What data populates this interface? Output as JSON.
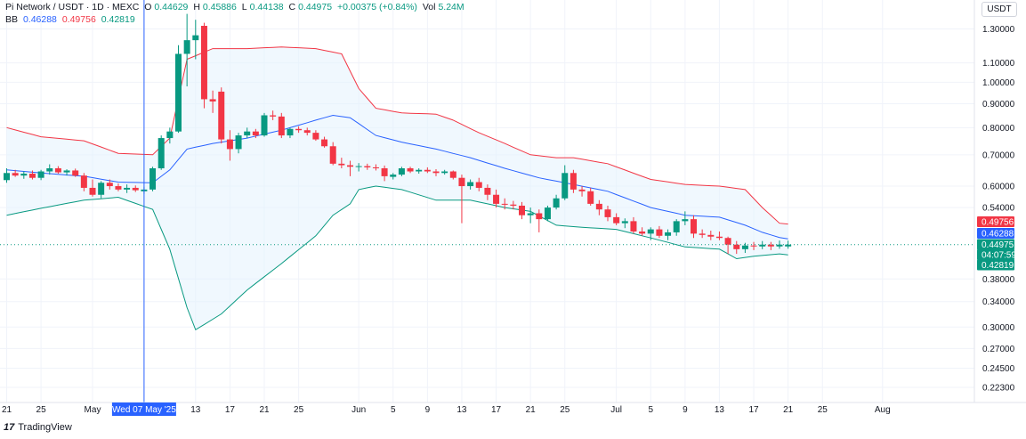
{
  "header": {
    "title": "Pi Network / USDT · 1D · MEXC",
    "open_label": "O",
    "open": "0.44629",
    "high_label": "H",
    "high": "0.45886",
    "low_label": "L",
    "low": "0.44138",
    "close_label": "C",
    "close": "0.44975",
    "change": "+0.00375 (+0.84%)",
    "volume_label": "Vol",
    "volume": "5.24M"
  },
  "bb_legend": {
    "name": "BB",
    "basis": "0.46288",
    "upper": "0.49756",
    "lower": "0.42819"
  },
  "currency": "USDT",
  "branding": {
    "logo": "17",
    "name": "TradingView"
  },
  "colors": {
    "up": "#089981",
    "down": "#f23645",
    "basis": "#2962ff",
    "upper": "#f23645",
    "lower": "#089981",
    "fill": "#e3f2fd",
    "crosshair": "#2962ff"
  },
  "chart_data": {
    "type": "candlestick",
    "title": "Pi Network / USDT · 1D · MEXC",
    "y_scale": "log",
    "ylim": [
      0.2,
      1.5
    ],
    "price_ticks": [
      "1.30000",
      "1.10000",
      "1.00000",
      "0.90000",
      "0.80000",
      "0.70000",
      "0.60000",
      "0.54000",
      "0.38000",
      "0.34000",
      "0.30000",
      "0.27000",
      "0.24500",
      "0.22300"
    ],
    "x_ticks": [
      {
        "day": 0,
        "label": "21"
      },
      {
        "day": 4,
        "label": "25"
      },
      {
        "day": 10,
        "label": "May"
      },
      {
        "day": 22,
        "label": "13"
      },
      {
        "day": 26,
        "label": "17"
      },
      {
        "day": 30,
        "label": "21"
      },
      {
        "day": 34,
        "label": "25"
      },
      {
        "day": 41,
        "label": "Jun"
      },
      {
        "day": 45,
        "label": "5"
      },
      {
        "day": 49,
        "label": "9"
      },
      {
        "day": 53,
        "label": "13"
      },
      {
        "day": 57,
        "label": "17"
      },
      {
        "day": 61,
        "label": "21"
      },
      {
        "day": 65,
        "label": "25"
      },
      {
        "day": 71,
        "label": "Jul"
      },
      {
        "day": 75,
        "label": "5"
      },
      {
        "day": 79,
        "label": "9"
      },
      {
        "day": 83,
        "label": "13"
      },
      {
        "day": 87,
        "label": "17"
      },
      {
        "day": 91,
        "label": "21"
      },
      {
        "day": 95,
        "label": "25"
      },
      {
        "day": 102,
        "label": "Aug"
      }
    ],
    "crosshair": {
      "day": 16,
      "label": "Wed 07 May '25"
    },
    "price_badges": [
      {
        "label": "0.49756",
        "color": "#f23645"
      },
      {
        "label": "0.46288",
        "color": "#2962ff"
      },
      {
        "label": "0.44975",
        "color": "#089981"
      },
      {
        "label": "04:07:59",
        "color": "#089981"
      },
      {
        "label": "0.42819",
        "color": "#089981"
      }
    ],
    "candles": [
      {
        "o": 0.618,
        "h": 0.655,
        "l": 0.61,
        "c": 0.64
      },
      {
        "o": 0.64,
        "h": 0.65,
        "l": 0.628,
        "c": 0.632
      },
      {
        "o": 0.632,
        "h": 0.645,
        "l": 0.622,
        "c": 0.638
      },
      {
        "o": 0.638,
        "h": 0.648,
        "l": 0.62,
        "c": 0.625
      },
      {
        "o": 0.625,
        "h": 0.65,
        "l": 0.618,
        "c": 0.645
      },
      {
        "o": 0.645,
        "h": 0.668,
        "l": 0.635,
        "c": 0.655
      },
      {
        "o": 0.655,
        "h": 0.662,
        "l": 0.638,
        "c": 0.642
      },
      {
        "o": 0.642,
        "h": 0.652,
        "l": 0.632,
        "c": 0.648
      },
      {
        "o": 0.648,
        "h": 0.654,
        "l": 0.628,
        "c": 0.632
      },
      {
        "o": 0.632,
        "h": 0.64,
        "l": 0.585,
        "c": 0.595
      },
      {
        "o": 0.595,
        "h": 0.62,
        "l": 0.57,
        "c": 0.575
      },
      {
        "o": 0.575,
        "h": 0.615,
        "l": 0.565,
        "c": 0.61
      },
      {
        "o": 0.61,
        "h": 0.62,
        "l": 0.59,
        "c": 0.6
      },
      {
        "o": 0.6,
        "h": 0.608,
        "l": 0.585,
        "c": 0.59
      },
      {
        "o": 0.59,
        "h": 0.605,
        "l": 0.58,
        "c": 0.595
      },
      {
        "o": 0.595,
        "h": 0.602,
        "l": 0.583,
        "c": 0.588
      },
      {
        "o": 0.585,
        "h": 0.598,
        "l": 0.578,
        "c": 0.59
      },
      {
        "o": 0.59,
        "h": 0.66,
        "l": 0.585,
        "c": 0.655
      },
      {
        "o": 0.655,
        "h": 0.77,
        "l": 0.65,
        "c": 0.76
      },
      {
        "o": 0.76,
        "h": 0.8,
        "l": 0.74,
        "c": 0.785
      },
      {
        "o": 0.785,
        "h": 1.2,
        "l": 0.78,
        "c": 1.15
      },
      {
        "o": 1.15,
        "h": 1.4,
        "l": 0.98,
        "c": 1.23
      },
      {
        "o": 1.23,
        "h": 1.36,
        "l": 1.12,
        "c": 1.26
      },
      {
        "o": 1.32,
        "h": 1.34,
        "l": 0.88,
        "c": 0.92
      },
      {
        "o": 0.92,
        "h": 0.96,
        "l": 0.86,
        "c": 0.91
      },
      {
        "o": 0.955,
        "h": 0.975,
        "l": 0.74,
        "c": 0.755
      },
      {
        "o": 0.755,
        "h": 0.79,
        "l": 0.68,
        "c": 0.72
      },
      {
        "o": 0.72,
        "h": 0.78,
        "l": 0.705,
        "c": 0.77
      },
      {
        "o": 0.77,
        "h": 0.8,
        "l": 0.76,
        "c": 0.785
      },
      {
        "o": 0.785,
        "h": 0.795,
        "l": 0.76,
        "c": 0.77
      },
      {
        "o": 0.77,
        "h": 0.86,
        "l": 0.765,
        "c": 0.85
      },
      {
        "o": 0.85,
        "h": 0.87,
        "l": 0.83,
        "c": 0.845
      },
      {
        "o": 0.845,
        "h": 0.86,
        "l": 0.76,
        "c": 0.77
      },
      {
        "o": 0.77,
        "h": 0.8,
        "l": 0.76,
        "c": 0.795
      },
      {
        "o": 0.795,
        "h": 0.805,
        "l": 0.78,
        "c": 0.79
      },
      {
        "o": 0.79,
        "h": 0.8,
        "l": 0.77,
        "c": 0.78
      },
      {
        "o": 0.78,
        "h": 0.79,
        "l": 0.75,
        "c": 0.755
      },
      {
        "o": 0.755,
        "h": 0.765,
        "l": 0.725,
        "c": 0.73
      },
      {
        "o": 0.73,
        "h": 0.745,
        "l": 0.665,
        "c": 0.67
      },
      {
        "o": 0.67,
        "h": 0.69,
        "l": 0.655,
        "c": 0.665
      },
      {
        "o": 0.665,
        "h": 0.68,
        "l": 0.63,
        "c": 0.66
      },
      {
        "o": 0.66,
        "h": 0.672,
        "l": 0.645,
        "c": 0.662
      },
      {
        "o": 0.662,
        "h": 0.67,
        "l": 0.65,
        "c": 0.658
      },
      {
        "o": 0.658,
        "h": 0.668,
        "l": 0.648,
        "c": 0.655
      },
      {
        "o": 0.655,
        "h": 0.664,
        "l": 0.615,
        "c": 0.63
      },
      {
        "o": 0.628,
        "h": 0.64,
        "l": 0.62,
        "c": 0.635
      },
      {
        "o": 0.635,
        "h": 0.66,
        "l": 0.63,
        "c": 0.655
      },
      {
        "o": 0.655,
        "h": 0.66,
        "l": 0.64,
        "c": 0.645
      },
      {
        "o": 0.645,
        "h": 0.655,
        "l": 0.638,
        "c": 0.65
      },
      {
        "o": 0.65,
        "h": 0.658,
        "l": 0.64,
        "c": 0.645
      },
      {
        "o": 0.645,
        "h": 0.652,
        "l": 0.63,
        "c": 0.64
      },
      {
        "o": 0.64,
        "h": 0.65,
        "l": 0.635,
        "c": 0.645
      },
      {
        "o": 0.645,
        "h": 0.648,
        "l": 0.62,
        "c": 0.625
      },
      {
        "o": 0.625,
        "h": 0.635,
        "l": 0.5,
        "c": 0.6
      },
      {
        "o": 0.6,
        "h": 0.62,
        "l": 0.59,
        "c": 0.612
      },
      {
        "o": 0.612,
        "h": 0.625,
        "l": 0.585,
        "c": 0.595
      },
      {
        "o": 0.595,
        "h": 0.605,
        "l": 0.56,
        "c": 0.575
      },
      {
        "o": 0.575,
        "h": 0.59,
        "l": 0.54,
        "c": 0.55
      },
      {
        "o": 0.55,
        "h": 0.565,
        "l": 0.535,
        "c": 0.548
      },
      {
        "o": 0.548,
        "h": 0.558,
        "l": 0.535,
        "c": 0.545
      },
      {
        "o": 0.545,
        "h": 0.555,
        "l": 0.51,
        "c": 0.52
      },
      {
        "o": 0.52,
        "h": 0.54,
        "l": 0.5,
        "c": 0.525
      },
      {
        "o": 0.525,
        "h": 0.535,
        "l": 0.478,
        "c": 0.51
      },
      {
        "o": 0.51,
        "h": 0.545,
        "l": 0.505,
        "c": 0.54
      },
      {
        "o": 0.54,
        "h": 0.575,
        "l": 0.535,
        "c": 0.565
      },
      {
        "o": 0.565,
        "h": 0.665,
        "l": 0.56,
        "c": 0.64
      },
      {
        "o": 0.64,
        "h": 0.65,
        "l": 0.58,
        "c": 0.59
      },
      {
        "o": 0.59,
        "h": 0.6,
        "l": 0.57,
        "c": 0.585
      },
      {
        "o": 0.585,
        "h": 0.595,
        "l": 0.545,
        "c": 0.55
      },
      {
        "o": 0.55,
        "h": 0.56,
        "l": 0.52,
        "c": 0.535
      },
      {
        "o": 0.535,
        "h": 0.545,
        "l": 0.505,
        "c": 0.515
      },
      {
        "o": 0.515,
        "h": 0.525,
        "l": 0.495,
        "c": 0.5
      },
      {
        "o": 0.5,
        "h": 0.512,
        "l": 0.488,
        "c": 0.505
      },
      {
        "o": 0.505,
        "h": 0.515,
        "l": 0.475,
        "c": 0.48
      },
      {
        "o": 0.48,
        "h": 0.49,
        "l": 0.47,
        "c": 0.475
      },
      {
        "o": 0.475,
        "h": 0.49,
        "l": 0.46,
        "c": 0.485
      },
      {
        "o": 0.485,
        "h": 0.493,
        "l": 0.465,
        "c": 0.47
      },
      {
        "o": 0.47,
        "h": 0.485,
        "l": 0.46,
        "c": 0.478
      },
      {
        "o": 0.478,
        "h": 0.51,
        "l": 0.47,
        "c": 0.505
      },
      {
        "o": 0.505,
        "h": 0.53,
        "l": 0.495,
        "c": 0.51
      },
      {
        "o": 0.51,
        "h": 0.52,
        "l": 0.465,
        "c": 0.475
      },
      {
        "o": 0.475,
        "h": 0.485,
        "l": 0.465,
        "c": 0.472
      },
      {
        "o": 0.472,
        "h": 0.482,
        "l": 0.46,
        "c": 0.468
      },
      {
        "o": 0.468,
        "h": 0.48,
        "l": 0.46,
        "c": 0.465
      },
      {
        "o": 0.465,
        "h": 0.468,
        "l": 0.43,
        "c": 0.45
      },
      {
        "o": 0.45,
        "h": 0.458,
        "l": 0.43,
        "c": 0.44
      },
      {
        "o": 0.44,
        "h": 0.454,
        "l": 0.432,
        "c": 0.448
      },
      {
        "o": 0.448,
        "h": 0.456,
        "l": 0.438,
        "c": 0.446
      },
      {
        "o": 0.446,
        "h": 0.458,
        "l": 0.44,
        "c": 0.45
      },
      {
        "o": 0.45,
        "h": 0.456,
        "l": 0.438,
        "c": 0.446
      },
      {
        "o": 0.446,
        "h": 0.459,
        "l": 0.441,
        "c": 0.45
      },
      {
        "o": 0.446,
        "h": 0.459,
        "l": 0.441,
        "c": 0.45
      }
    ],
    "bb_upper_keys": [
      [
        0,
        0.8
      ],
      [
        4,
        0.765
      ],
      [
        9,
        0.75
      ],
      [
        13,
        0.705
      ],
      [
        17,
        0.7
      ],
      [
        19,
        0.76
      ],
      [
        21,
        1.12
      ],
      [
        24,
        1.18
      ],
      [
        28,
        1.18
      ],
      [
        32,
        1.19
      ],
      [
        36,
        1.18
      ],
      [
        39,
        1.15
      ],
      [
        41,
        0.97
      ],
      [
        43,
        0.88
      ],
      [
        46,
        0.86
      ],
      [
        50,
        0.855
      ],
      [
        52,
        0.83
      ],
      [
        55,
        0.78
      ],
      [
        58,
        0.74
      ],
      [
        61,
        0.7
      ],
      [
        64,
        0.69
      ],
      [
        66,
        0.69
      ],
      [
        70,
        0.67
      ],
      [
        75,
        0.62
      ],
      [
        79,
        0.605
      ],
      [
        83,
        0.6
      ],
      [
        86,
        0.59
      ],
      [
        88,
        0.54
      ],
      [
        90,
        0.5
      ],
      [
        91,
        0.498
      ]
    ],
    "bb_basis_keys": [
      [
        0,
        0.65
      ],
      [
        4,
        0.64
      ],
      [
        9,
        0.63
      ],
      [
        13,
        0.612
      ],
      [
        17,
        0.61
      ],
      [
        19,
        0.65
      ],
      [
        21,
        0.72
      ],
      [
        24,
        0.74
      ],
      [
        28,
        0.76
      ],
      [
        32,
        0.79
      ],
      [
        36,
        0.83
      ],
      [
        38,
        0.85
      ],
      [
        40,
        0.84
      ],
      [
        43,
        0.77
      ],
      [
        46,
        0.745
      ],
      [
        50,
        0.72
      ],
      [
        54,
        0.69
      ],
      [
        58,
        0.655
      ],
      [
        62,
        0.625
      ],
      [
        66,
        0.605
      ],
      [
        70,
        0.585
      ],
      [
        75,
        0.54
      ],
      [
        79,
        0.52
      ],
      [
        83,
        0.515
      ],
      [
        86,
        0.495
      ],
      [
        88,
        0.478
      ],
      [
        90,
        0.466
      ],
      [
        91,
        0.463
      ]
    ],
    "bb_lower_keys": [
      [
        0,
        0.52
      ],
      [
        4,
        0.538
      ],
      [
        9,
        0.56
      ],
      [
        13,
        0.568
      ],
      [
        17,
        0.535
      ],
      [
        19,
        0.44
      ],
      [
        21,
        0.33
      ],
      [
        22,
        0.296
      ],
      [
        25,
        0.32
      ],
      [
        28,
        0.36
      ],
      [
        32,
        0.41
      ],
      [
        36,
        0.47
      ],
      [
        38,
        0.52
      ],
      [
        40,
        0.55
      ],
      [
        41,
        0.59
      ],
      [
        43,
        0.6
      ],
      [
        46,
        0.59
      ],
      [
        50,
        0.56
      ],
      [
        54,
        0.56
      ],
      [
        58,
        0.54
      ],
      [
        61,
        0.53
      ],
      [
        64,
        0.495
      ],
      [
        67,
        0.49
      ],
      [
        71,
        0.485
      ],
      [
        75,
        0.465
      ],
      [
        79,
        0.445
      ],
      [
        83,
        0.44
      ],
      [
        85,
        0.42
      ],
      [
        87,
        0.425
      ],
      [
        90,
        0.43
      ],
      [
        91,
        0.428
      ]
    ]
  }
}
